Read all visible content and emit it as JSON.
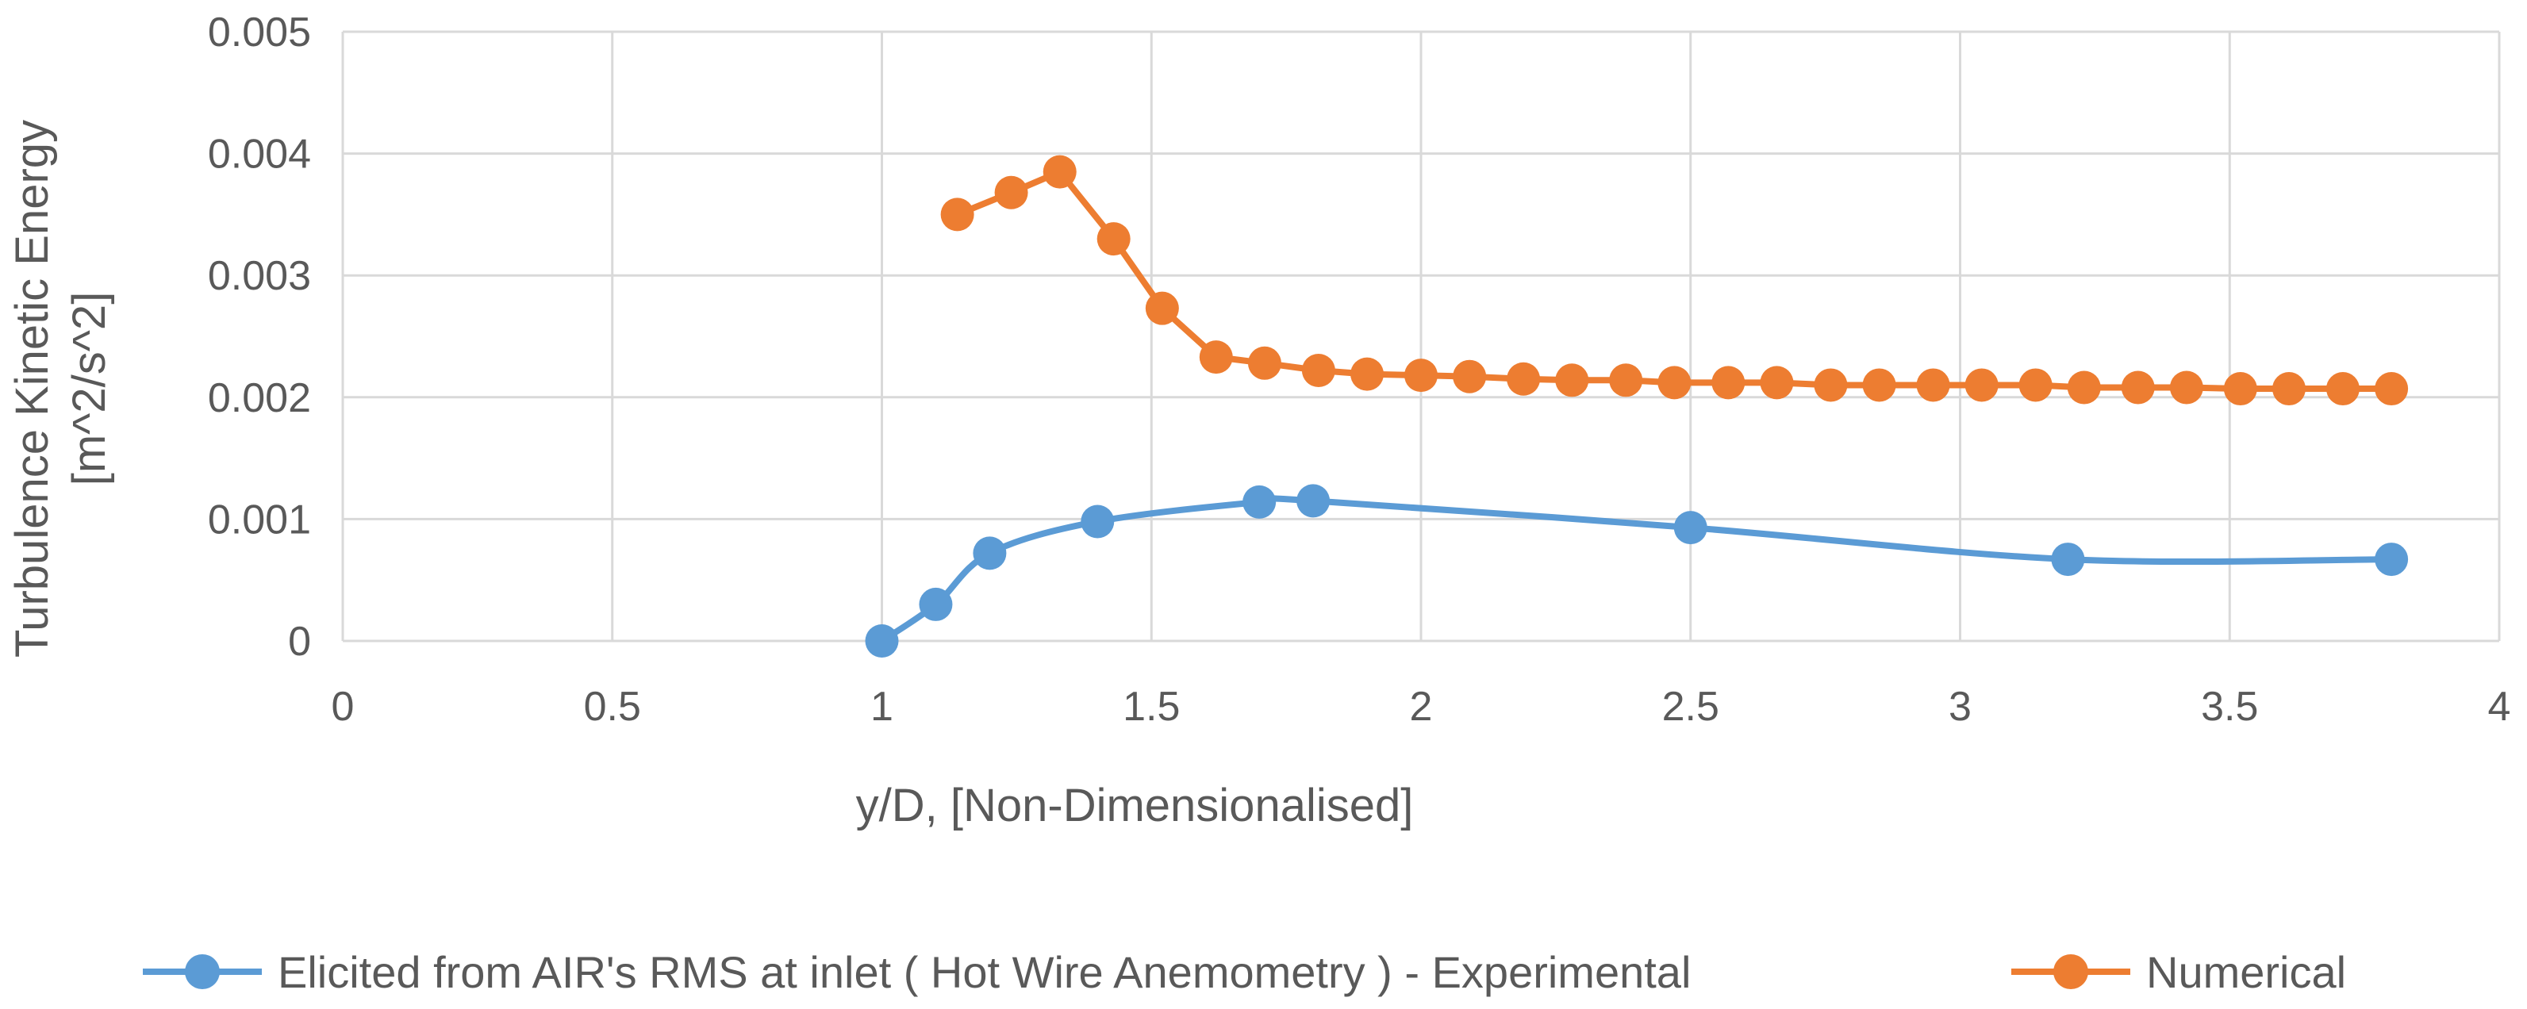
{
  "chart_data": {
    "type": "line",
    "title": "",
    "xlabel": "y/D, [Non-Dimensionalised]",
    "ylabel_lines": [
      "Turbulence Kinetic Energy",
      "[m^2/s^2]"
    ],
    "xlim": [
      0,
      4
    ],
    "ylim": [
      0,
      0.005
    ],
    "x_ticks": [
      0,
      0.5,
      1,
      1.5,
      2,
      2.5,
      3,
      3.5,
      4
    ],
    "x_tick_labels": [
      "0",
      "0.5",
      "1",
      "1.5",
      "2",
      "2.5",
      "3",
      "3.5",
      "4"
    ],
    "y_ticks": [
      0,
      0.001,
      0.002,
      0.003,
      0.004,
      0.005
    ],
    "y_tick_labels": [
      "0",
      "0.001",
      "0.002",
      "0.003",
      "0.004",
      "0.005"
    ],
    "grid": true,
    "legend_position": "bottom",
    "series": [
      {
        "name": "Elicited from AIR's RMS at inlet ( Hot Wire Anemometry ) - Experimental",
        "color": "#5B9BD5",
        "smooth": true,
        "x": [
          1.0,
          1.1,
          1.2,
          1.4,
          1.7,
          1.8,
          2.5,
          3.2,
          3.8
        ],
        "y": [
          0.0,
          0.0003,
          0.00072,
          0.00098,
          0.00114,
          0.00115,
          0.00093,
          0.00067,
          0.00067
        ]
      },
      {
        "name": "Numerical",
        "color": "#ED7D31",
        "smooth": false,
        "x": [
          1.14,
          1.24,
          1.33,
          1.43,
          1.52,
          1.62,
          1.71,
          1.81,
          1.9,
          2.0,
          2.09,
          2.19,
          2.28,
          2.38,
          2.47,
          2.57,
          2.66,
          2.76,
          2.85,
          2.95,
          3.04,
          3.14,
          3.23,
          3.33,
          3.42,
          3.52,
          3.61,
          3.71,
          3.8
        ],
        "y": [
          0.0035,
          0.00368,
          0.00385,
          0.0033,
          0.00273,
          0.00233,
          0.00228,
          0.00222,
          0.00219,
          0.00218,
          0.00217,
          0.00215,
          0.00214,
          0.00214,
          0.00212,
          0.00212,
          0.00212,
          0.0021,
          0.0021,
          0.0021,
          0.0021,
          0.0021,
          0.00208,
          0.00208,
          0.00208,
          0.00207,
          0.00207,
          0.00207,
          0.00207
        ]
      }
    ]
  }
}
